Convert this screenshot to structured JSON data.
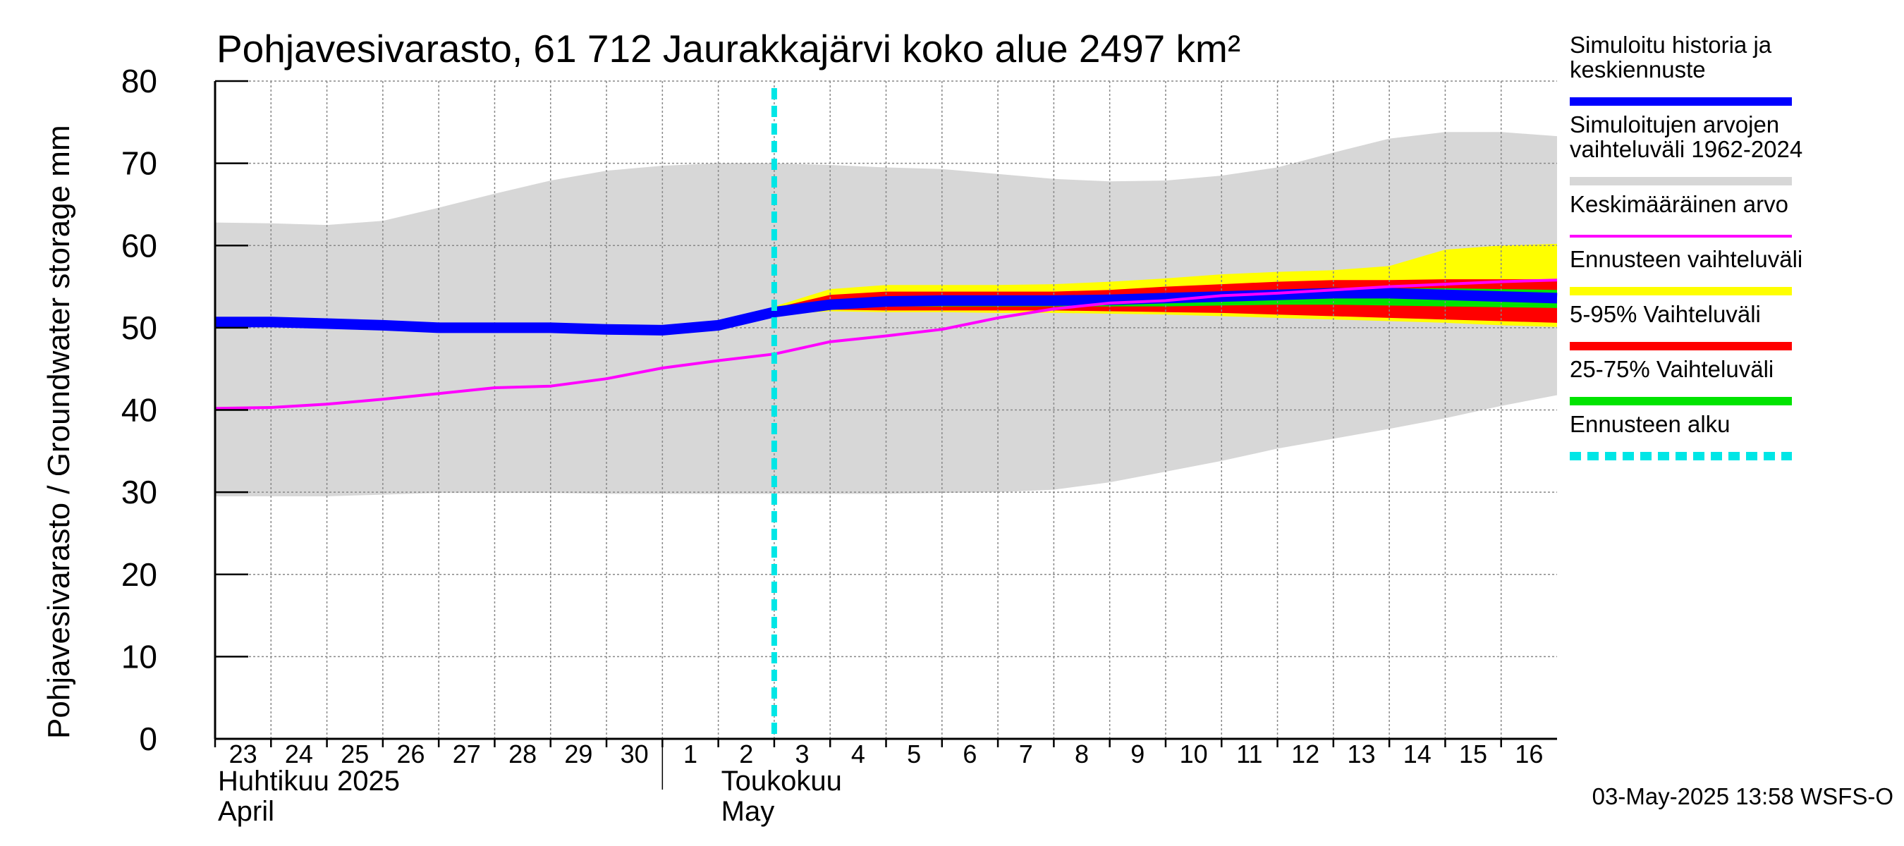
{
  "colors": {
    "history_range": "#d7d7d7",
    "forecast_range": "#ffff00",
    "p5_95": "#ff0000",
    "p25_75": "#00e400",
    "simulated": "#0000ff",
    "mean": "#ff00ff",
    "forecast_start": "#00e6e6",
    "grid": "#888888"
  },
  "chart_data": {
    "type": "area",
    "title": "Pohjavesivarasto, 61 712 Jaurakkajärvi koko alue 2497 km²",
    "ylabel": "Pohjavesivarasto / Groundwater storage   mm",
    "ylim": [
      0,
      80
    ],
    "yticks": [
      0,
      10,
      20,
      30,
      40,
      50,
      60,
      70,
      80
    ],
    "xlim": [
      0,
      24
    ],
    "x_ticks": [
      {
        "x": 0,
        "label": "23"
      },
      {
        "x": 1,
        "label": "24"
      },
      {
        "x": 2,
        "label": "25"
      },
      {
        "x": 3,
        "label": "26"
      },
      {
        "x": 4,
        "label": "27"
      },
      {
        "x": 5,
        "label": "28"
      },
      {
        "x": 6,
        "label": "29"
      },
      {
        "x": 7,
        "label": "30"
      },
      {
        "x": 8,
        "label": "1"
      },
      {
        "x": 9,
        "label": "2"
      },
      {
        "x": 10,
        "label": "3"
      },
      {
        "x": 11,
        "label": "4"
      },
      {
        "x": 12,
        "label": "5"
      },
      {
        "x": 13,
        "label": "6"
      },
      {
        "x": 14,
        "label": "7"
      },
      {
        "x": 15,
        "label": "8"
      },
      {
        "x": 16,
        "label": "9"
      },
      {
        "x": 17,
        "label": "10"
      },
      {
        "x": 18,
        "label": "11"
      },
      {
        "x": 19,
        "label": "12"
      },
      {
        "x": 20,
        "label": "13"
      },
      {
        "x": 21,
        "label": "14"
      },
      {
        "x": 22,
        "label": "15"
      },
      {
        "x": 23,
        "label": "16"
      }
    ],
    "month_labels": [
      {
        "x": 0,
        "line1": "Huhtikuu  2025",
        "line2": "April"
      },
      {
        "x": 9,
        "line1": "Toukokuu",
        "line2": "May"
      }
    ],
    "month_divider_x": 8,
    "forecast_start_x": 10,
    "series": [
      {
        "name": "Simuloitujen arvojen vaihteluväli 1962-2024",
        "kind": "band",
        "x": [
          0,
          1,
          2,
          3,
          4,
          5,
          6,
          7,
          8,
          9,
          10,
          11,
          12,
          13,
          14,
          15,
          16,
          17,
          18,
          19,
          20,
          21,
          22,
          23,
          24
        ],
        "low": [
          29.5,
          29.5,
          29.5,
          29.7,
          29.9,
          29.9,
          29.9,
          29.8,
          29.8,
          29.8,
          29.8,
          29.8,
          29.8,
          29.9,
          30.0,
          30.3,
          31.2,
          32.5,
          33.8,
          35.3,
          36.5,
          37.7,
          39.0,
          40.5,
          41.8
        ],
        "high": [
          62.8,
          62.7,
          62.5,
          63.0,
          64.6,
          66.3,
          67.9,
          69.1,
          69.7,
          70.0,
          70.0,
          69.8,
          69.5,
          69.3,
          68.7,
          68.1,
          67.8,
          67.9,
          68.5,
          69.5,
          71.3,
          73.0,
          73.8,
          73.8,
          73.3
        ]
      },
      {
        "name": "Ennusteen vaihteluväli",
        "kind": "band",
        "x": [
          10,
          11,
          12,
          13,
          14,
          15,
          16,
          17,
          18,
          19,
          20,
          21,
          22,
          23,
          24
        ],
        "low": [
          51.6,
          52.0,
          51.9,
          51.9,
          51.8,
          51.8,
          51.7,
          51.6,
          51.4,
          51.2,
          51.0,
          50.8,
          50.6,
          50.3,
          50.1
        ],
        "high": [
          52.6,
          54.7,
          55.2,
          55.2,
          55.2,
          55.3,
          55.6,
          56.0,
          56.5,
          56.8,
          57.0,
          57.5,
          59.5,
          60.0,
          60.2
        ]
      },
      {
        "name": "5-95% Vaihteluväli",
        "kind": "band",
        "x": [
          10,
          11,
          12,
          13,
          14,
          15,
          16,
          17,
          18,
          19,
          20,
          21,
          22,
          23,
          24
        ],
        "low": [
          51.8,
          52.2,
          52.1,
          52.1,
          52.1,
          52.1,
          52.0,
          51.9,
          51.8,
          51.6,
          51.4,
          51.2,
          51.0,
          50.8,
          50.6
        ],
        "high": [
          52.4,
          54.0,
          54.4,
          54.4,
          54.4,
          54.4,
          54.6,
          55.0,
          55.3,
          55.6,
          55.8,
          55.8,
          55.9,
          55.9,
          55.9
        ]
      },
      {
        "name": "25-75% Vaihteluväli",
        "kind": "band",
        "x": [
          10,
          11,
          12,
          13,
          14,
          15,
          16,
          17,
          18,
          19,
          20,
          21,
          22,
          23,
          24
        ],
        "low": [
          51.8,
          52.4,
          52.6,
          52.6,
          52.6,
          52.6,
          52.6,
          52.6,
          52.7,
          52.8,
          52.8,
          52.7,
          52.6,
          52.5,
          52.4
        ],
        "high": [
          52.1,
          53.3,
          53.7,
          53.8,
          53.8,
          53.8,
          53.9,
          54.1,
          54.3,
          54.5,
          54.7,
          54.8,
          54.8,
          54.7,
          54.6
        ]
      },
      {
        "name": "Simuloitu historia ja keskiennuste",
        "kind": "line",
        "x": [
          0,
          1,
          2,
          3,
          4,
          5,
          6,
          7,
          8,
          9,
          10,
          11,
          12,
          13,
          14,
          15,
          16,
          17,
          18,
          19,
          20,
          21,
          22,
          23,
          24
        ],
        "values": [
          50.7,
          50.7,
          50.5,
          50.3,
          50.0,
          50.0,
          50.0,
          49.8,
          49.7,
          50.3,
          51.9,
          52.8,
          53.2,
          53.3,
          53.3,
          53.3,
          53.4,
          53.6,
          53.8,
          54.0,
          54.2,
          54.2,
          54.0,
          53.8,
          53.6
        ]
      },
      {
        "name": "Keskimääräinen arvo",
        "kind": "line",
        "x": [
          0,
          1,
          2,
          3,
          4,
          5,
          6,
          7,
          8,
          9,
          10,
          11,
          12,
          13,
          14,
          15,
          16,
          17,
          18,
          19,
          20,
          21,
          22,
          23,
          24
        ],
        "values": [
          40.2,
          40.3,
          40.7,
          41.3,
          42.0,
          42.7,
          42.9,
          43.8,
          45.1,
          46.0,
          46.8,
          48.3,
          49.0,
          49.8,
          51.2,
          52.3,
          53.0,
          53.3,
          53.9,
          54.2,
          54.6,
          55.0,
          55.3,
          55.6,
          55.8
        ]
      }
    ]
  },
  "legend": [
    {
      "lines": [
        "Simuloitu historia ja",
        "keskiennuste"
      ],
      "color_key": "simulated",
      "style": "solid"
    },
    {
      "lines": [
        "Simuloitujen arvojen",
        "vaihteluväli 1962-2024"
      ],
      "color_key": "history_range",
      "style": "solid"
    },
    {
      "lines": [
        "Keskimääräinen arvo"
      ],
      "color_key": "mean",
      "style": "thin"
    },
    {
      "lines": [
        "Ennusteen vaihteluväli"
      ],
      "color_key": "forecast_range",
      "style": "solid"
    },
    {
      "lines": [
        "5-95% Vaihteluväli"
      ],
      "color_key": "p5_95",
      "style": "solid"
    },
    {
      "lines": [
        "25-75% Vaihteluväli"
      ],
      "color_key": "p25_75",
      "style": "solid"
    },
    {
      "lines": [
        "Ennusteen alku"
      ],
      "color_key": "forecast_start",
      "style": "dashed"
    }
  ],
  "timestamp": "03-May-2025 13:58 WSFS-O"
}
